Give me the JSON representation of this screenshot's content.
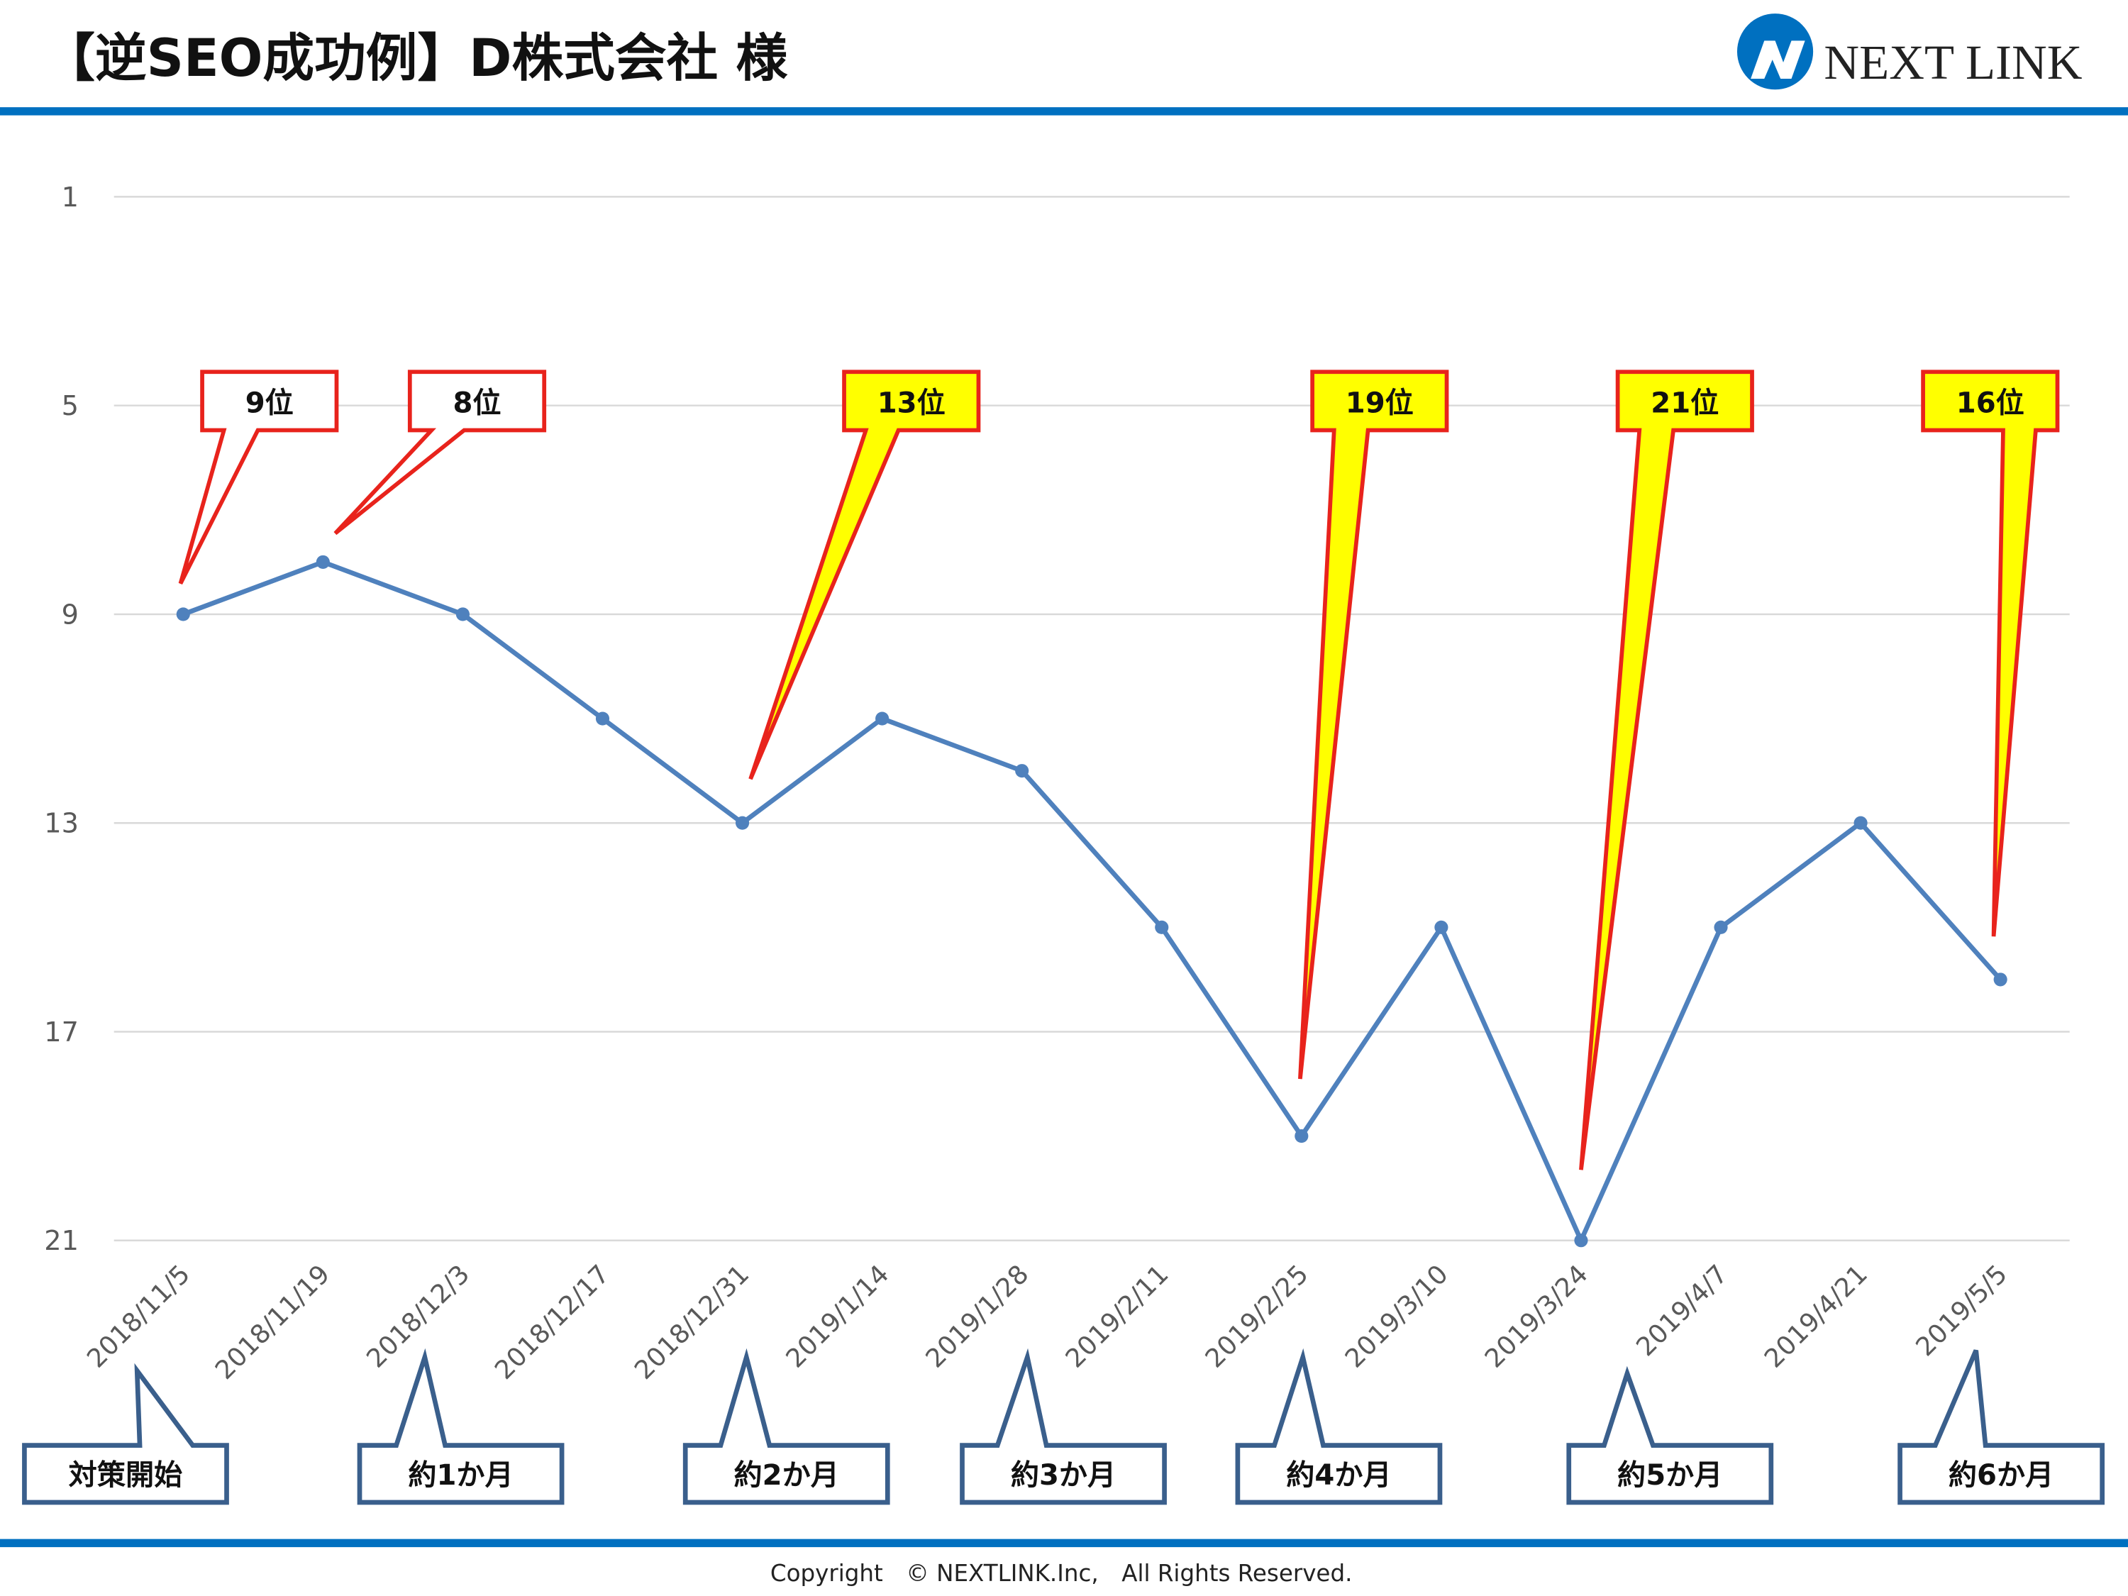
{
  "header": {
    "title": "【逆SEO成功例】D株式会社 様",
    "logo_text": "NEXT LINK",
    "brand_color": "#0070c0"
  },
  "footer": {
    "copyright": "Copyright　© NEXTLINK.Inc,　All Rights Reserved."
  },
  "chart_data": {
    "type": "line",
    "title": "",
    "xlabel": "",
    "ylabel": "",
    "y_axis_reversed": true,
    "ylim": [
      1,
      21
    ],
    "yticks": [
      1,
      5,
      9,
      13,
      17,
      21
    ],
    "grid": true,
    "line_color": "#4f81bd",
    "categories": [
      "2018/11/5",
      "2018/11/19",
      "2018/12/3",
      "2018/12/17",
      "2018/12/31",
      "2019/1/14",
      "2019/1/28",
      "2019/2/11",
      "2019/2/25",
      "2019/3/10",
      "2019/3/24",
      "2019/4/7",
      "2019/4/21",
      "2019/5/5"
    ],
    "values": [
      9,
      8,
      9,
      11,
      13,
      11,
      12,
      15,
      19,
      15,
      21,
      15,
      13,
      16
    ],
    "rank_callouts": [
      {
        "label": "9位",
        "category": "2018/11/5",
        "fill": "#ffffff"
      },
      {
        "label": "8位",
        "category": "2018/11/19",
        "fill": "#ffffff"
      },
      {
        "label": "13位",
        "category": "2018/12/31",
        "fill": "#ffff00"
      },
      {
        "label": "19位",
        "category": "2019/2/25",
        "fill": "#ffff00"
      },
      {
        "label": "21位",
        "category": "2019/3/24",
        "fill": "#ffff00"
      },
      {
        "label": "16位",
        "category": "2019/5/5",
        "fill": "#ffff00"
      }
    ],
    "callout_border_color": "#e8231c",
    "period_callouts": [
      {
        "label": "対策開始",
        "category": "2018/11/5"
      },
      {
        "label": "約1か月",
        "category": "2018/12/3"
      },
      {
        "label": "約2か月",
        "category": "2018/12/31"
      },
      {
        "label": "約3か月",
        "category": "2019/1/28"
      },
      {
        "label": "約4か月",
        "category": "2019/2/25"
      },
      {
        "label": "約5か月",
        "category": "2019/3/24"
      },
      {
        "label": "約6か月",
        "category": "2019/5/5"
      }
    ],
    "period_border_color": "#3a5f8c"
  }
}
